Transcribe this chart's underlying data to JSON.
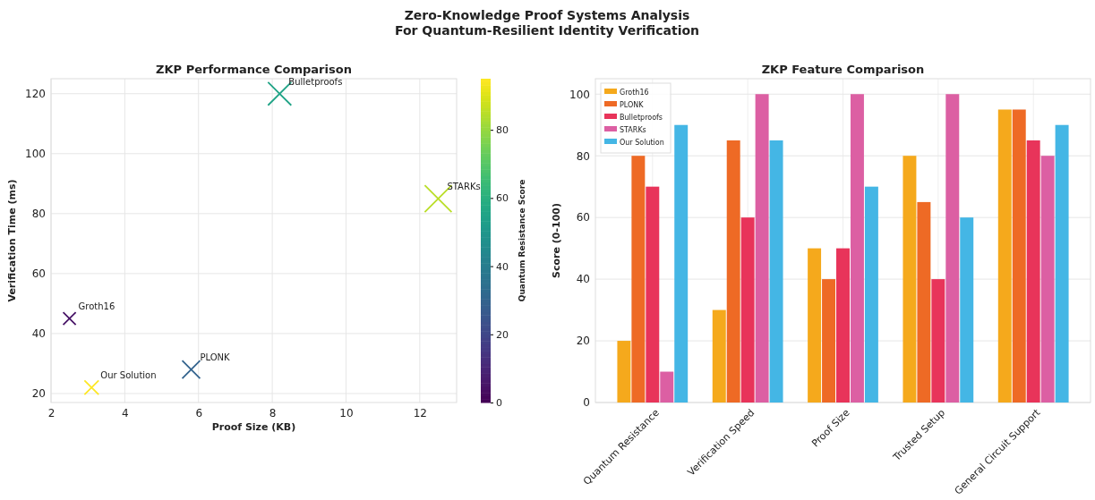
{
  "chart_data": [
    {
      "type": "bubble",
      "title": "ZKP Performance Comparison",
      "xlabel": "Proof Size (KB)",
      "ylabel": "Verification Time (ms)",
      "clabel": "Quantum Resistance Score",
      "x": [
        2.5,
        5.8,
        8.2,
        12.5,
        3.1
      ],
      "values": [
        45,
        28,
        120,
        85,
        22
      ],
      "sizes": [
        0.22,
        0.44,
        0.75,
        1,
        0.28
      ],
      "cvalues": [
        5,
        30,
        55,
        85,
        95
      ],
      "xlim": [
        2,
        13
      ],
      "xticks": [
        2,
        4,
        6,
        8,
        10,
        12
      ],
      "ylim": [
        17,
        125
      ],
      "yticks": [
        20,
        40,
        60,
        80,
        100,
        120
      ],
      "clim": [
        0,
        95
      ],
      "cticks": [
        0,
        20,
        40,
        60,
        80
      ],
      "marker": "cross",
      "grid": true,
      "annotations": [
        "Zero-Knowledge Proof Systems Analysis\nFor Quantum-Resilient Identity Verification",
        {
          "text": "Groth16",
          "x": 2.5,
          "y": 45
        },
        {
          "text": "PLONK",
          "x": 5.8,
          "y": 28
        },
        {
          "text": "Bulletproofs",
          "x": 8.2,
          "y": 120
        },
        {
          "text": "STARKs",
          "x": 12.5,
          "y": 85
        },
        {
          "text": "Our Solution",
          "x": 3.1,
          "y": 22
        }
      ]
    },
    {
      "type": "bar",
      "title": "ZKP Feature Comparison",
      "ylabel": "Score (0-100)",
      "categories": [
        "Quantum Resistance",
        "Verification Speed",
        "Proof Size",
        "Trusted Setup",
        "General Circuit Support"
      ],
      "series": [
        {
          "name": "Groth16",
          "color": "#f5a91c",
          "values": [
            20,
            30,
            50,
            80,
            95
          ]
        },
        {
          "name": "PLONK",
          "color": "#ee6a25",
          "values": [
            80,
            85,
            40,
            65,
            95
          ]
        },
        {
          "name": "Bulletproofs",
          "color": "#e8345a",
          "values": [
            70,
            60,
            50,
            40,
            85
          ]
        },
        {
          "name": "STARKs",
          "color": "#dc5fa3",
          "values": [
            10,
            100,
            100,
            100,
            80
          ]
        },
        {
          "name": "Our Solution",
          "color": "#44b6e5",
          "values": [
            90,
            85,
            70,
            60,
            90
          ]
        }
      ],
      "ylim": [
        0,
        105
      ],
      "yticks": [
        0,
        20,
        40,
        60,
        80,
        100
      ],
      "grid": true,
      "legend": "top left"
    }
  ]
}
